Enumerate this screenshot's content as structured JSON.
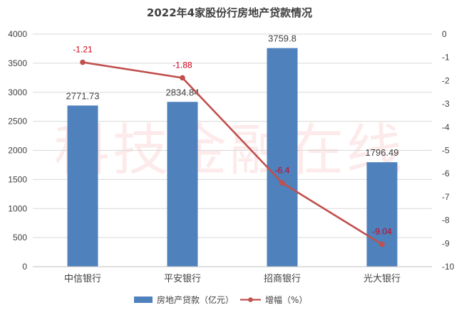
{
  "watermark": "科技金融在线",
  "colors": {
    "bar": "#4f81bd",
    "line": "#c0504d",
    "line_label": "#d0021b",
    "grid": "#d9d9d9",
    "axis": "#bfbfbf"
  },
  "chart_data": {
    "type": "bar",
    "title": "2022年4家股份行房地产贷款情况",
    "categories": [
      "中信银行",
      "平安银行",
      "招商银行",
      "光大银行"
    ],
    "series": [
      {
        "name": "房地产贷款（亿元）",
        "type": "bar",
        "axis": "left",
        "values": [
          2771.73,
          2834.84,
          3759.8,
          1796.49
        ],
        "labels": [
          "2771.73",
          "2834.84",
          "3759.8",
          "1796.49"
        ]
      },
      {
        "name": "增幅（%）",
        "type": "line",
        "axis": "right",
        "values": [
          -1.21,
          -1.88,
          -6.4,
          -9.04
        ],
        "labels": [
          "-1.21",
          "-1.88",
          "-6.4",
          "-9.04"
        ]
      }
    ],
    "y_left": {
      "min": 0,
      "max": 4000,
      "step": 500
    },
    "y_right": {
      "min": -10,
      "max": 0,
      "step": 1
    },
    "grid": true,
    "legend_position": "bottom"
  }
}
